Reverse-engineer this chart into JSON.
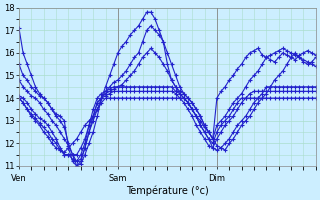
{
  "xlabel": "Température (°c)",
  "ylabel": "",
  "background_color": "#cceeff",
  "grid_color": "#aaddcc",
  "line_color": "#2222cc",
  "marker": "+",
  "ylim": [
    11,
    18
  ],
  "yticks": [
    11,
    12,
    13,
    14,
    15,
    16,
    17,
    18
  ],
  "day_labels": [
    "Ven",
    "Sam",
    "Dim"
  ],
  "day_positions": [
    0,
    24,
    48
  ],
  "total_hours": 72,
  "series": [
    [
      17.1,
      16.0,
      15.5,
      15.0,
      14.5,
      14.2,
      14.0,
      13.8,
      13.5,
      13.3,
      13.2,
      13.0,
      11.8,
      11.2,
      11.0,
      11.1,
      11.5,
      12.0,
      12.5,
      13.2,
      14.0,
      14.5,
      15.0,
      15.5,
      16.0,
      16.3,
      16.5,
      16.8,
      17.0,
      17.2,
      17.5,
      17.8,
      17.8,
      17.5,
      17.0,
      16.5,
      15.5,
      14.8,
      14.5,
      14.2,
      14.0,
      13.8,
      13.5,
      13.2,
      13.0,
      12.7,
      12.5,
      12.2,
      14.0,
      14.3,
      14.5,
      14.8,
      15.0,
      15.3,
      15.5,
      15.8,
      16.0,
      16.1,
      16.2,
      15.9,
      15.8,
      15.7,
      15.6,
      15.8,
      16.0,
      15.9,
      15.8,
      15.7,
      15.9,
      16.0,
      16.1,
      16.0,
      15.9
    ],
    [
      15.5,
      15.0,
      14.8,
      14.5,
      14.3,
      14.1,
      14.0,
      13.8,
      13.5,
      13.2,
      13.0,
      12.7,
      12.0,
      11.5,
      11.0,
      11.2,
      11.8,
      12.5,
      13.0,
      13.5,
      14.0,
      14.3,
      14.5,
      14.7,
      14.8,
      15.0,
      15.2,
      15.5,
      15.8,
      16.0,
      16.5,
      17.0,
      17.2,
      17.0,
      16.8,
      16.5,
      16.0,
      15.5,
      15.0,
      14.5,
      14.2,
      14.0,
      13.8,
      13.5,
      13.2,
      12.8,
      12.5,
      12.2,
      12.8,
      13.0,
      13.2,
      13.5,
      13.8,
      14.0,
      14.2,
      14.5,
      14.8,
      15.0,
      15.2,
      15.5,
      15.8,
      15.9,
      16.0,
      16.1,
      16.2,
      16.1,
      16.0,
      15.9,
      15.8,
      15.7,
      15.6,
      15.5,
      15.4
    ],
    [
      14.8,
      14.5,
      14.3,
      14.1,
      14.0,
      13.8,
      13.5,
      13.3,
      13.0,
      12.8,
      12.5,
      12.2,
      11.9,
      11.5,
      11.2,
      11.3,
      11.8,
      12.5,
      13.2,
      13.8,
      14.0,
      14.2,
      14.3,
      14.4,
      14.5,
      14.6,
      14.8,
      15.0,
      15.2,
      15.5,
      15.8,
      16.0,
      16.2,
      16.0,
      15.8,
      15.5,
      15.2,
      14.8,
      14.5,
      14.3,
      14.2,
      14.0,
      13.8,
      13.5,
      13.2,
      12.8,
      12.5,
      12.2,
      11.9,
      11.8,
      11.7,
      12.0,
      12.2,
      12.5,
      12.8,
      13.0,
      13.2,
      13.5,
      13.8,
      14.0,
      14.2,
      14.5,
      14.8,
      15.0,
      15.2,
      15.5,
      15.8,
      16.0,
      15.8,
      15.6,
      15.5,
      15.6,
      15.8
    ],
    [
      14.1,
      14.0,
      13.8,
      13.5,
      13.3,
      13.1,
      13.0,
      12.8,
      12.5,
      12.2,
      11.8,
      11.5,
      11.5,
      11.3,
      11.2,
      11.5,
      12.0,
      12.8,
      13.5,
      14.0,
      14.2,
      14.3,
      14.4,
      14.5,
      14.5,
      14.5,
      14.5,
      14.5,
      14.5,
      14.5,
      14.5,
      14.5,
      14.5,
      14.5,
      14.5,
      14.5,
      14.5,
      14.5,
      14.3,
      14.2,
      14.0,
      13.8,
      13.5,
      13.2,
      12.8,
      12.5,
      12.2,
      11.8,
      11.7,
      11.8,
      12.0,
      12.2,
      12.5,
      12.8,
      13.0,
      13.2,
      13.5,
      13.8,
      14.0,
      14.2,
      14.5,
      14.5,
      14.5,
      14.5,
      14.5,
      14.5,
      14.5,
      14.5,
      14.5,
      14.5,
      14.5,
      14.5,
      14.5
    ],
    [
      14.0,
      13.8,
      13.5,
      13.3,
      13.1,
      12.9,
      12.7,
      12.5,
      12.2,
      12.0,
      11.7,
      11.5,
      11.5,
      11.5,
      11.5,
      11.8,
      12.2,
      12.8,
      13.2,
      13.8,
      14.0,
      14.1,
      14.2,
      14.3,
      14.3,
      14.3,
      14.3,
      14.3,
      14.3,
      14.3,
      14.3,
      14.3,
      14.3,
      14.3,
      14.3,
      14.3,
      14.3,
      14.3,
      14.2,
      14.0,
      13.8,
      13.5,
      13.2,
      12.8,
      12.5,
      12.2,
      11.9,
      11.8,
      12.2,
      12.5,
      12.8,
      13.0,
      13.2,
      13.5,
      13.8,
      14.0,
      14.2,
      14.3,
      14.3,
      14.3,
      14.3,
      14.3,
      14.3,
      14.3,
      14.3,
      14.3,
      14.3,
      14.3,
      14.3,
      14.3,
      14.3,
      14.3,
      14.3
    ],
    [
      14.0,
      13.8,
      13.5,
      13.2,
      13.0,
      12.8,
      12.5,
      12.3,
      12.0,
      11.8,
      11.7,
      11.6,
      11.8,
      12.0,
      12.2,
      12.5,
      12.8,
      13.0,
      13.2,
      13.5,
      13.8,
      14.0,
      14.0,
      14.0,
      14.0,
      14.0,
      14.0,
      14.0,
      14.0,
      14.0,
      14.0,
      14.0,
      14.0,
      14.0,
      14.0,
      14.0,
      14.0,
      14.0,
      14.0,
      14.0,
      14.0,
      13.8,
      13.5,
      13.2,
      12.8,
      12.5,
      12.2,
      12.0,
      12.5,
      12.8,
      13.0,
      13.2,
      13.5,
      13.8,
      14.0,
      14.0,
      14.0,
      14.0,
      14.0,
      14.0,
      14.0,
      14.0,
      14.0,
      14.0,
      14.0,
      14.0,
      14.0,
      14.0,
      14.0,
      14.0,
      14.0,
      14.0,
      14.0
    ]
  ]
}
